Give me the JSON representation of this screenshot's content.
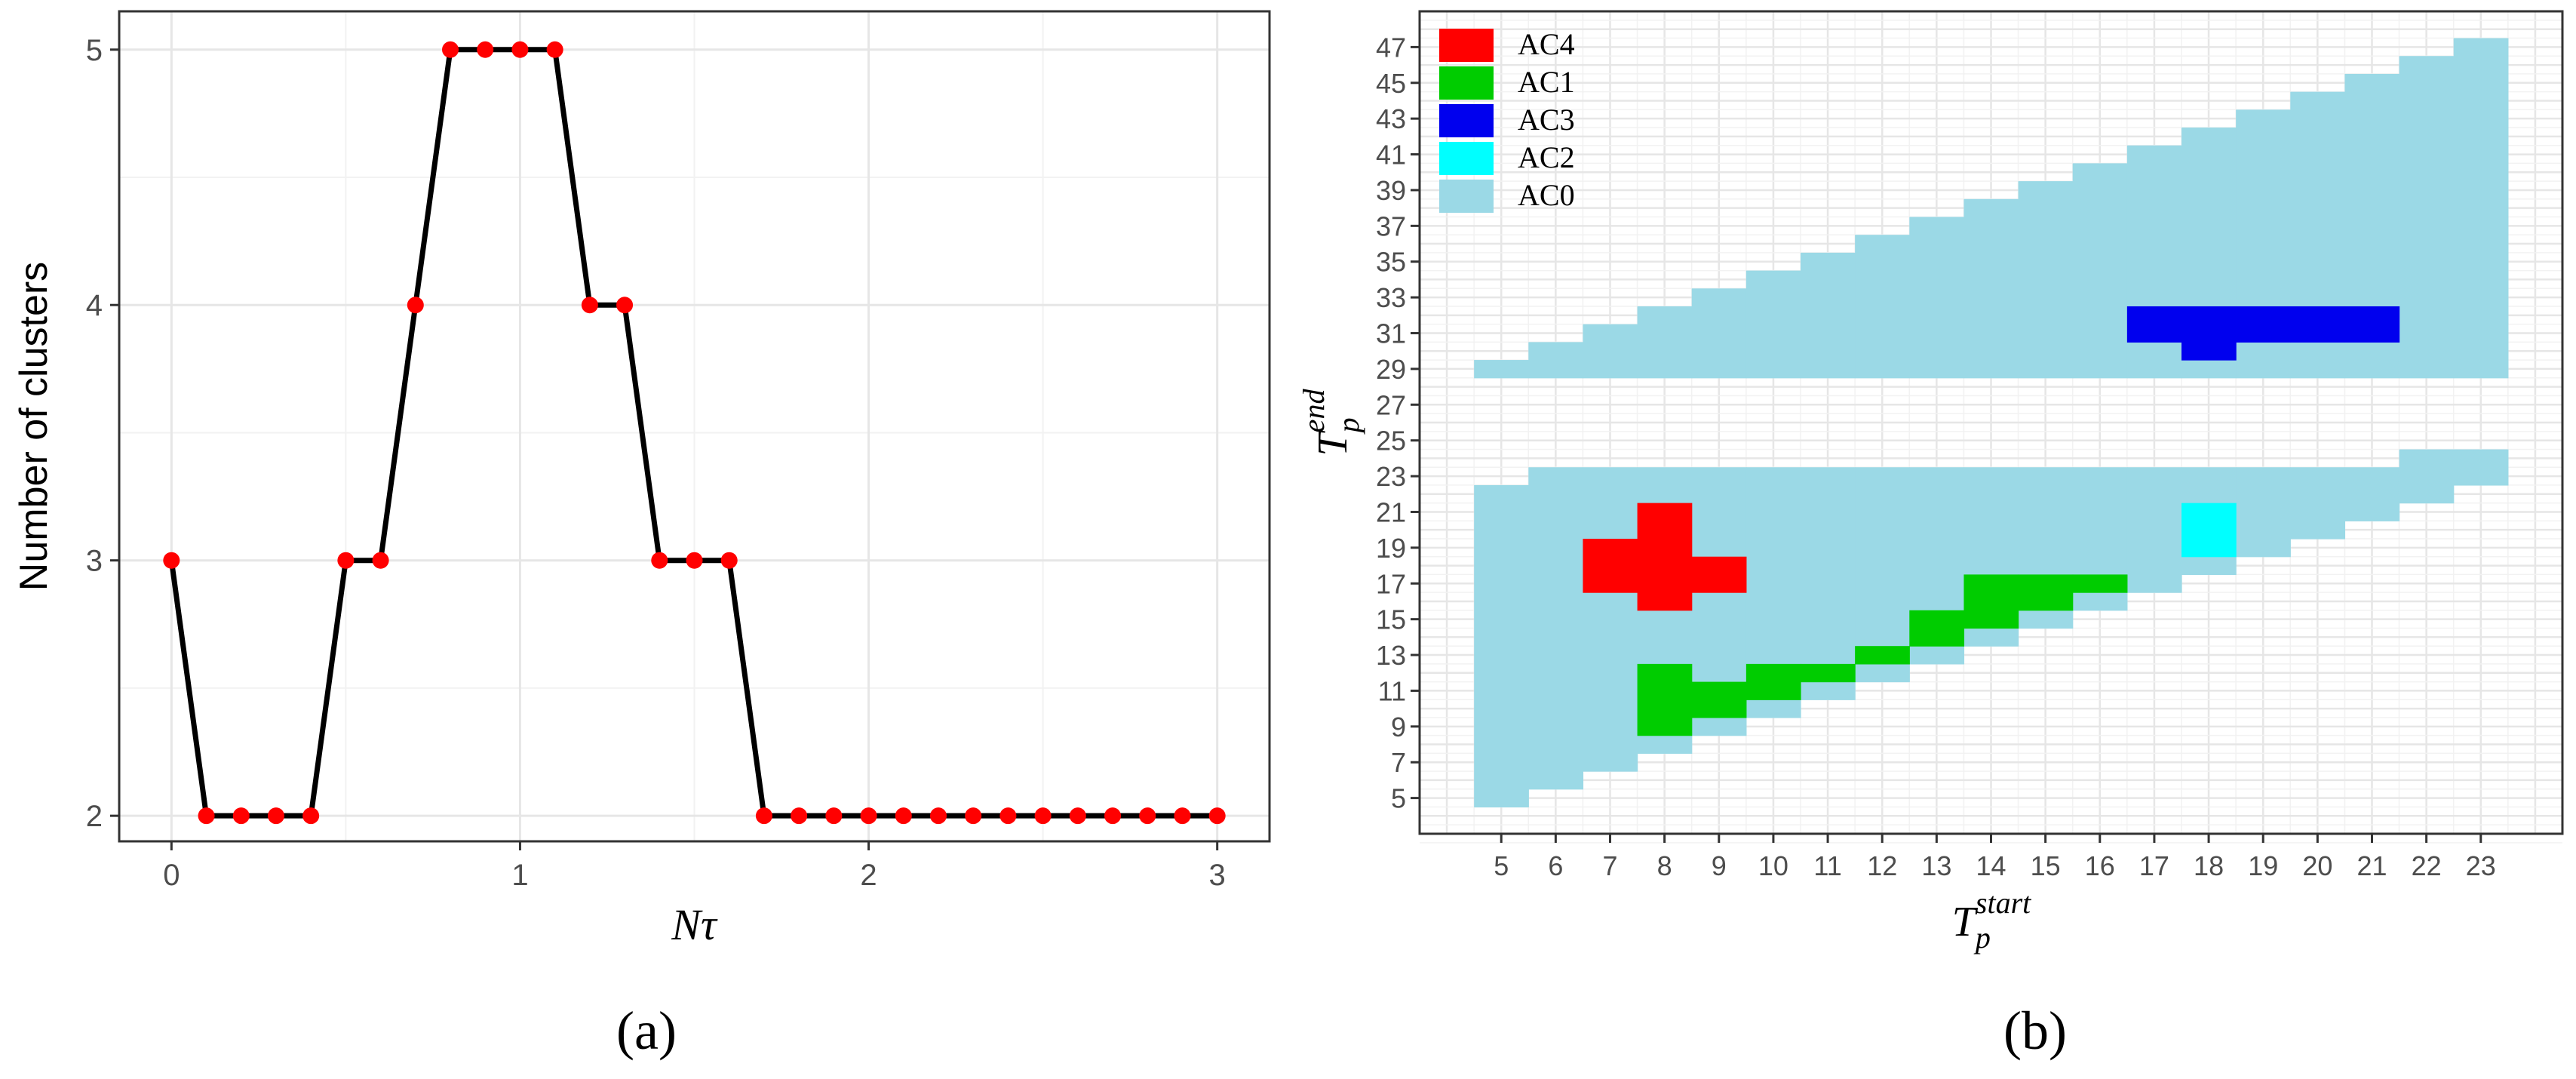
{
  "chart_data": [
    {
      "type": "line",
      "panel_label": "(a)",
      "ylabel": "Number of clusters",
      "xlabel_main": "N",
      "xlabel_symbol": "τ",
      "x_ticks": [
        0,
        1,
        2,
        3
      ],
      "y_ticks": [
        2,
        3,
        4,
        5
      ],
      "xlim": [
        -0.15,
        3.15
      ],
      "ylim": [
        1.9,
        5.15
      ],
      "line_color": "#000000",
      "point_color": "#ff0000",
      "x": [
        0,
        0.1,
        0.2,
        0.3,
        0.4,
        0.5,
        0.6,
        0.7,
        0.8,
        0.9,
        1.0,
        1.1,
        1.2,
        1.3,
        1.4,
        1.5,
        1.6,
        1.7,
        1.8,
        1.9,
        2.0,
        2.1,
        2.2,
        2.3,
        2.4,
        2.5,
        2.6,
        2.7,
        2.8,
        2.9,
        3.0
      ],
      "y": [
        3,
        2,
        2,
        2,
        2,
        3,
        3,
        4,
        5,
        5,
        5,
        5,
        4,
        4,
        3,
        3,
        3,
        2,
        2,
        2,
        2,
        2,
        2,
        2,
        2,
        2,
        2,
        2,
        2,
        2,
        2
      ]
    },
    {
      "type": "heatmap",
      "panel_label": "(b)",
      "xlabel_main": "T",
      "xlabel_sub": "p",
      "xlabel_sup": "start",
      "ylabel_main": "T",
      "ylabel_sub": "p",
      "ylabel_sup": "end",
      "x_ticks": [
        5,
        6,
        7,
        8,
        9,
        10,
        11,
        12,
        13,
        14,
        15,
        16,
        17,
        18,
        19,
        20,
        21,
        22,
        23
      ],
      "y_ticks": [
        5,
        7,
        9,
        11,
        13,
        15,
        17,
        19,
        21,
        23,
        25,
        27,
        29,
        31,
        33,
        35,
        37,
        39,
        41,
        43,
        45,
        47
      ],
      "xlim": [
        3.5,
        24.5
      ],
      "ylim": [
        3,
        49
      ],
      "legend": [
        {
          "label": "AC4",
          "color": "#ff0000"
        },
        {
          "label": "AC1",
          "color": "#00cc00"
        },
        {
          "label": "AC3",
          "color": "#0000ee"
        },
        {
          "label": "AC2",
          "color": "#00ffff"
        },
        {
          "label": "AC0",
          "color": "#9bd9e6"
        }
      ],
      "ac0_lower_columns": [
        {
          "start": 5,
          "end_min": 5,
          "end_max": 22
        },
        {
          "start": 6,
          "end_min": 6,
          "end_max": 23
        },
        {
          "start": 7,
          "end_min": 7,
          "end_max": 23
        },
        {
          "start": 8,
          "end_min": 8,
          "end_max": 23
        },
        {
          "start": 9,
          "end_min": 9,
          "end_max": 23
        },
        {
          "start": 10,
          "end_min": 10,
          "end_max": 23
        },
        {
          "start": 11,
          "end_min": 11,
          "end_max": 23
        },
        {
          "start": 12,
          "end_min": 12,
          "end_max": 23
        },
        {
          "start": 13,
          "end_min": 13,
          "end_max": 23
        },
        {
          "start": 14,
          "end_min": 14,
          "end_max": 23
        },
        {
          "start": 15,
          "end_min": 15,
          "end_max": 23
        },
        {
          "start": 16,
          "end_min": 16,
          "end_max": 23
        },
        {
          "start": 17,
          "end_min": 17,
          "end_max": 23
        },
        {
          "start": 18,
          "end_min": 18,
          "end_max": 23
        },
        {
          "start": 19,
          "end_min": 19,
          "end_max": 23
        },
        {
          "start": 20,
          "end_min": 20,
          "end_max": 23
        },
        {
          "start": 21,
          "end_min": 21,
          "end_max": 23
        },
        {
          "start": 22,
          "end_min": 22,
          "end_max": 24
        },
        {
          "start": 23,
          "end_min": 23,
          "end_max": 24
        }
      ],
      "ac0_upper_columns": [
        {
          "start": 5,
          "end_min": 29,
          "end_max": 29
        },
        {
          "start": 6,
          "end_min": 29,
          "end_max": 30
        },
        {
          "start": 7,
          "end_min": 29,
          "end_max": 31
        },
        {
          "start": 8,
          "end_min": 29,
          "end_max": 32
        },
        {
          "start": 9,
          "end_min": 29,
          "end_max": 33
        },
        {
          "start": 10,
          "end_min": 29,
          "end_max": 34
        },
        {
          "start": 11,
          "end_min": 29,
          "end_max": 35
        },
        {
          "start": 12,
          "end_min": 29,
          "end_max": 36
        },
        {
          "start": 13,
          "end_min": 29,
          "end_max": 37
        },
        {
          "start": 14,
          "end_min": 29,
          "end_max": 38
        },
        {
          "start": 15,
          "end_min": 29,
          "end_max": 39
        },
        {
          "start": 16,
          "end_min": 29,
          "end_max": 40
        },
        {
          "start": 17,
          "end_min": 29,
          "end_max": 41
        },
        {
          "start": 18,
          "end_min": 29,
          "end_max": 42
        },
        {
          "start": 19,
          "end_min": 29,
          "end_max": 43
        },
        {
          "start": 20,
          "end_min": 29,
          "end_max": 44
        },
        {
          "start": 21,
          "end_min": 29,
          "end_max": 45
        },
        {
          "start": 22,
          "end_min": 29,
          "end_max": 46
        },
        {
          "start": 23,
          "end_min": 29,
          "end_max": 47
        }
      ],
      "cluster_cells": [
        {
          "cluster": "AC4",
          "start": 7,
          "end_min": 17,
          "end_max": 19
        },
        {
          "cluster": "AC4",
          "start": 8,
          "end_min": 16,
          "end_max": 21
        },
        {
          "cluster": "AC4",
          "start": 9,
          "end_min": 17,
          "end_max": 18
        },
        {
          "cluster": "AC1",
          "start": 8,
          "end_min": 9,
          "end_max": 12
        },
        {
          "cluster": "AC1",
          "start": 9,
          "end_min": 10,
          "end_max": 11
        },
        {
          "cluster": "AC1",
          "start": 10,
          "end_min": 11,
          "end_max": 12
        },
        {
          "cluster": "AC1",
          "start": 11,
          "end_min": 12,
          "end_max": 12
        },
        {
          "cluster": "AC1",
          "start": 12,
          "end_min": 13,
          "end_max": 13
        },
        {
          "cluster": "AC1",
          "start": 13,
          "end_min": 14,
          "end_max": 15
        },
        {
          "cluster": "AC1",
          "start": 14,
          "end_min": 15,
          "end_max": 17
        },
        {
          "cluster": "AC1",
          "start": 15,
          "end_min": 16,
          "end_max": 17
        },
        {
          "cluster": "AC1",
          "start": 16,
          "end_min": 17,
          "end_max": 17
        },
        {
          "cluster": "AC3",
          "start": 17,
          "end_min": 31,
          "end_max": 32
        },
        {
          "cluster": "AC3",
          "start": 18,
          "end_min": 30,
          "end_max": 32
        },
        {
          "cluster": "AC3",
          "start": 19,
          "end_min": 31,
          "end_max": 32
        },
        {
          "cluster": "AC3",
          "start": 20,
          "end_min": 31,
          "end_max": 32
        },
        {
          "cluster": "AC3",
          "start": 21,
          "end_min": 31,
          "end_max": 32
        },
        {
          "cluster": "AC2",
          "start": 18,
          "end_min": 19,
          "end_max": 21
        }
      ]
    }
  ]
}
